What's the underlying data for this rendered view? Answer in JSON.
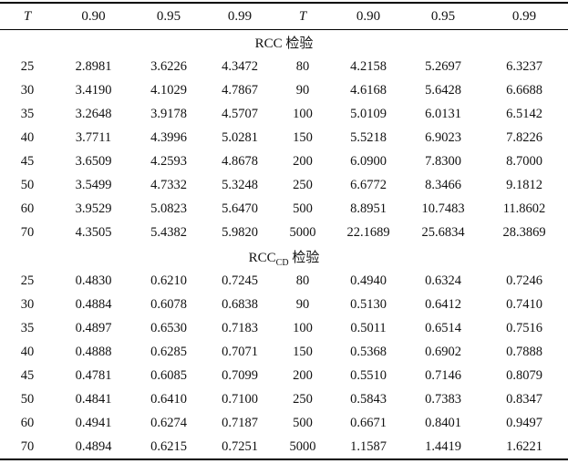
{
  "table": {
    "headers": [
      "T",
      "0.90",
      "0.95",
      "0.99",
      "T",
      "0.90",
      "0.95",
      "0.99"
    ],
    "sections": [
      {
        "title": {
          "base": "RCC",
          "sub": "",
          "label": "检验"
        },
        "rows": [
          [
            "25",
            "2.8981",
            "3.6226",
            "4.3472",
            "80",
            "4.2158",
            "5.2697",
            "6.3237"
          ],
          [
            "30",
            "3.4190",
            "4.1029",
            "4.7867",
            "90",
            "4.6168",
            "5.6428",
            "6.6688"
          ],
          [
            "35",
            "3.2648",
            "3.9178",
            "4.5707",
            "100",
            "5.0109",
            "6.0131",
            "6.5142"
          ],
          [
            "40",
            "3.7711",
            "4.3996",
            "5.0281",
            "150",
            "5.5218",
            "6.9023",
            "7.8226"
          ],
          [
            "45",
            "3.6509",
            "4.2593",
            "4.8678",
            "200",
            "6.0900",
            "7.8300",
            "8.7000"
          ],
          [
            "50",
            "3.5499",
            "4.7332",
            "5.3248",
            "250",
            "6.6772",
            "8.3466",
            "9.1812"
          ],
          [
            "60",
            "3.9529",
            "5.0823",
            "5.6470",
            "500",
            "8.8951",
            "10.7483",
            "11.8602"
          ],
          [
            "70",
            "4.3505",
            "5.4382",
            "5.9820",
            "5000",
            "22.1689",
            "25.6834",
            "28.3869"
          ]
        ]
      },
      {
        "title": {
          "base": "RCC",
          "sub": "CD",
          "label": "检验"
        },
        "rows": [
          [
            "25",
            "0.4830",
            "0.6210",
            "0.7245",
            "80",
            "0.4940",
            "0.6324",
            "0.7246"
          ],
          [
            "30",
            "0.4884",
            "0.6078",
            "0.6838",
            "90",
            "0.5130",
            "0.6412",
            "0.7410"
          ],
          [
            "35",
            "0.4897",
            "0.6530",
            "0.7183",
            "100",
            "0.5011",
            "0.6514",
            "0.7516"
          ],
          [
            "40",
            "0.4888",
            "0.6285",
            "0.7071",
            "150",
            "0.5368",
            "0.6902",
            "0.7888"
          ],
          [
            "45",
            "0.4781",
            "0.6085",
            "0.7099",
            "200",
            "0.5510",
            "0.7146",
            "0.8079"
          ],
          [
            "50",
            "0.4841",
            "0.6410",
            "0.7100",
            "250",
            "0.5843",
            "0.7383",
            "0.8347"
          ],
          [
            "60",
            "0.4941",
            "0.6274",
            "0.7187",
            "500",
            "0.6671",
            "0.8401",
            "0.9497"
          ],
          [
            "70",
            "0.4894",
            "0.6215",
            "0.7251",
            "5000",
            "1.1587",
            "1.4419",
            "1.6221"
          ]
        ]
      }
    ]
  }
}
